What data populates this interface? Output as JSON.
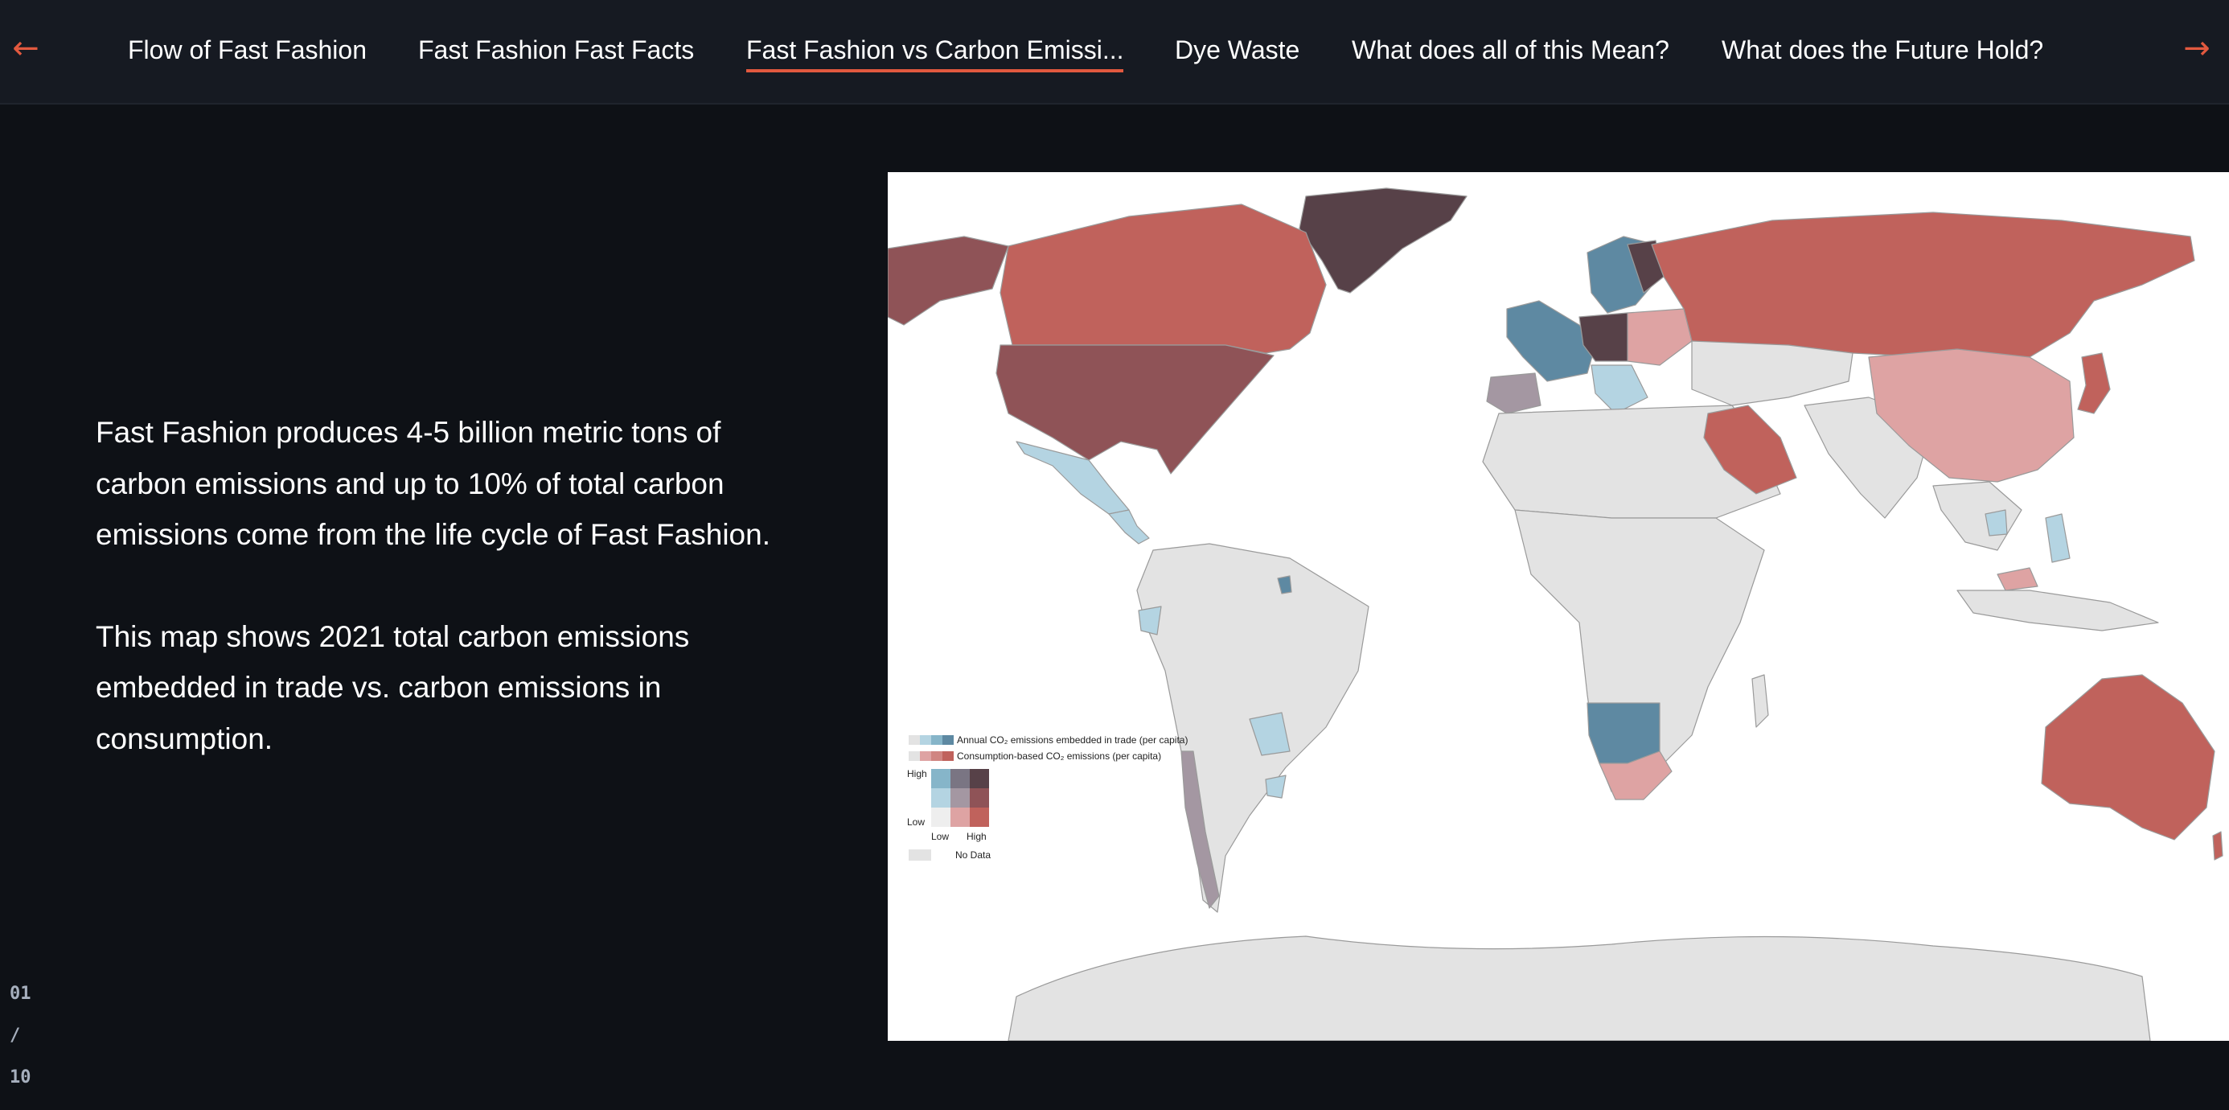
{
  "nav": {
    "prev_arrow": "←",
    "next_arrow": "→",
    "tabs": [
      {
        "label": "Flow of Fast Fashion"
      },
      {
        "label": "Fast Fashion Fast Facts"
      },
      {
        "label": "Fast Fashion vs Carbon Emissi...",
        "active": true
      },
      {
        "label": "Dye Waste"
      },
      {
        "label": "What does all of this Mean?"
      },
      {
        "label": "What does the Future Hold?"
      }
    ],
    "accent_color": "#e2593f"
  },
  "content": {
    "paragraph1": "Fast Fashion produces 4-5 billion metric tons of carbon emissions and up to 10% of total carbon emissions come from the life cycle of Fast Fashion.",
    "paragraph2": "This map shows 2021 total carbon emissions embedded in trade vs. carbon emissions in consumption."
  },
  "pager": {
    "current": "01",
    "separator": "/",
    "total": "10"
  },
  "map": {
    "legend": {
      "trade_label": "Annual CO₂ emissions embedded in trade (per capita)",
      "consumption_label": "Consumption-based CO₂ emissions (per capita)",
      "y_high": "High",
      "y_low": "Low",
      "x_low": "Low",
      "x_high": "High",
      "no_data": "No Data"
    },
    "colors": {
      "ocean": "#ffffff",
      "no_data": "#e3e3e3",
      "high_high": "#574148",
      "high_consumption": "#c0625c",
      "mid_consumption": "#8f5357",
      "low_consumption_pink": "#dea3a3",
      "high_trade": "#5e89a2",
      "mid_trade": "#86b5c9",
      "low_trade": "#b4d4e2",
      "mixed": "#a497a2"
    }
  }
}
